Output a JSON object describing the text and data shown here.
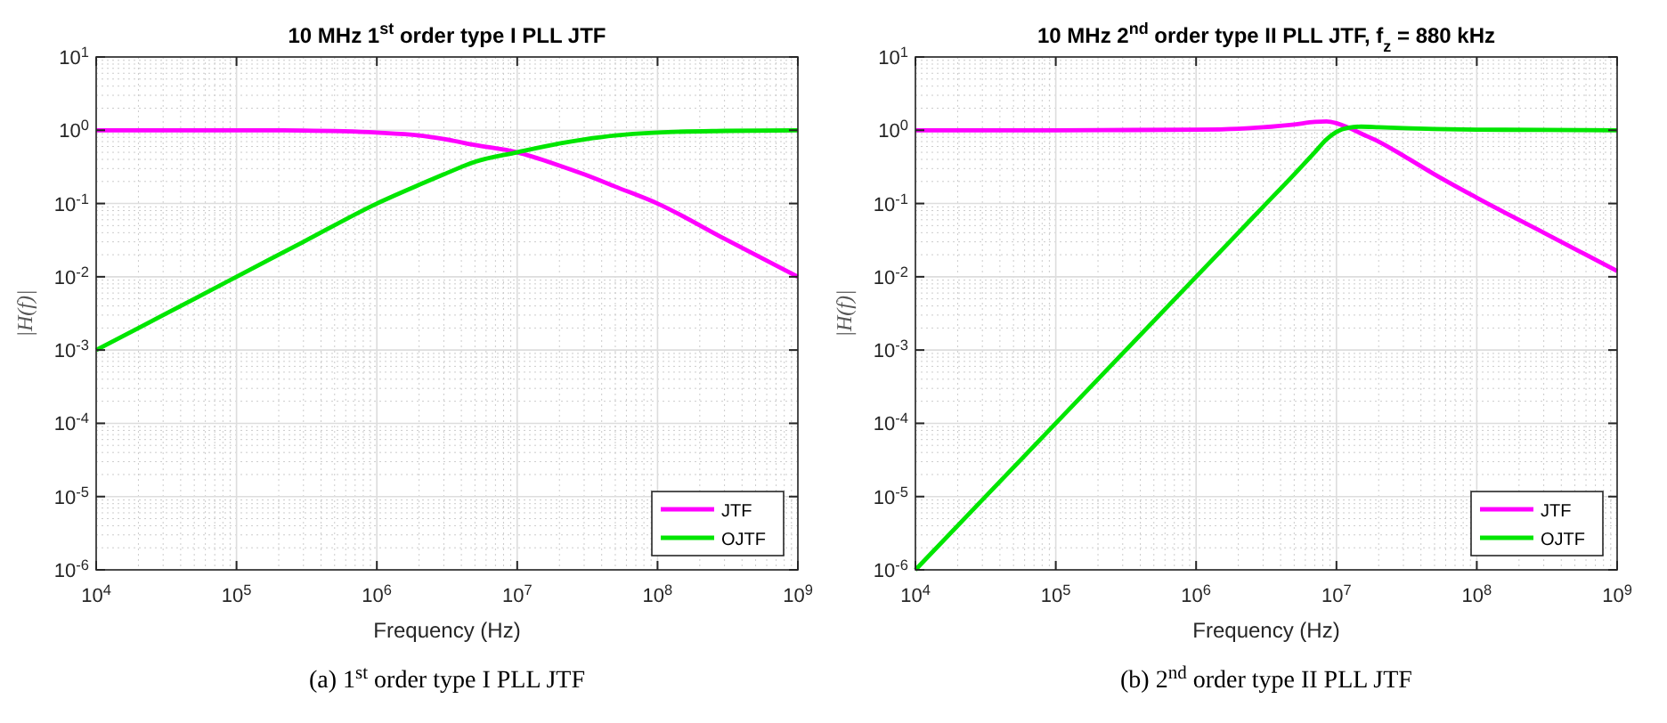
{
  "chart_data": [
    {
      "type": "line",
      "title": "10 MHz 1$^{st}$ order type I PLL JTF",
      "xlabel": "Frequency (Hz)",
      "ylabel": "|H(f)|",
      "log": "xy",
      "grid": true,
      "legend": "bottom right",
      "line_style": "solid",
      "xlim": [
        10000,
        1000000000
      ],
      "xticks": [
        {
          "value": 10000,
          "label": "10$^{4}$"
        },
        {
          "value": 100000,
          "label": "10$^{5}$"
        },
        {
          "value": 1000000,
          "label": "10$^{6}$"
        },
        {
          "value": 10000000,
          "label": "10$^{7}$"
        },
        {
          "value": 100000000,
          "label": "10$^{8}$"
        },
        {
          "value": 1000000000,
          "label": "10$^{9}$"
        }
      ],
      "ylim": [
        1e-06,
        10
      ],
      "yticks": [
        {
          "value": 1e-06,
          "label": "10$^{-6}$"
        },
        {
          "value": 1e-05,
          "label": "10$^{-5}$"
        },
        {
          "value": 0.0001,
          "label": "10$^{-4}$"
        },
        {
          "value": 0.001,
          "label": "10$^{-3}$"
        },
        {
          "value": 0.01,
          "label": "10$^{-2}$"
        },
        {
          "value": 0.1,
          "label": "10$^{-1}$"
        },
        {
          "value": 1,
          "label": "10$^{0}$"
        },
        {
          "value": 10,
          "label": "10$^{1}$"
        }
      ],
      "x": [
        10000,
        30000,
        100000,
        300000,
        1000000,
        2000000,
        3000000,
        5000000,
        10000000,
        20000000,
        30000000,
        50000000,
        100000000,
        300000000,
        1000000000
      ],
      "series": [
        {
          "name": "JTF",
          "color": "#ff00ff",
          "values": [
            1,
            1,
            1,
            0.99,
            0.93,
            0.85,
            0.76,
            0.63,
            0.5,
            0.33,
            0.25,
            0.17,
            0.1,
            0.033,
            0.01
          ]
        },
        {
          "name": "OJTF",
          "color": "#00e600",
          "values": [
            0.001,
            0.003,
            0.01,
            0.03,
            0.1,
            0.18,
            0.25,
            0.37,
            0.5,
            0.66,
            0.75,
            0.85,
            0.93,
            0.98,
            1
          ]
        }
      ],
      "annotations": [
        "(a) 1$^{st}$ order type I PLL JTF"
      ]
    },
    {
      "type": "line",
      "title": "10 MHz 2$^{nd}$ order type II PLL JTF, f$_{z}$ = 880 kHz",
      "xlabel": "Frequency (Hz)",
      "ylabel": "|H(f)|",
      "log": "xy",
      "grid": true,
      "legend": "bottom right",
      "line_style": "solid",
      "xlim": [
        10000,
        1000000000
      ],
      "xticks": [
        {
          "value": 10000,
          "label": "10$^{4}$"
        },
        {
          "value": 100000,
          "label": "10$^{5}$"
        },
        {
          "value": 1000000,
          "label": "10$^{6}$"
        },
        {
          "value": 10000000,
          "label": "10$^{7}$"
        },
        {
          "value": 100000000,
          "label": "10$^{8}$"
        },
        {
          "value": 1000000000,
          "label": "10$^{9}$"
        }
      ],
      "ylim": [
        1e-06,
        10
      ],
      "yticks": [
        {
          "value": 1e-06,
          "label": "10$^{-6}$"
        },
        {
          "value": 1e-05,
          "label": "10$^{-5}$"
        },
        {
          "value": 0.0001,
          "label": "10$^{-4}$"
        },
        {
          "value": 0.001,
          "label": "10$^{-3}$"
        },
        {
          "value": 0.01,
          "label": "10$^{-2}$"
        },
        {
          "value": 0.1,
          "label": "10$^{-1}$"
        },
        {
          "value": 1,
          "label": "10$^{0}$"
        },
        {
          "value": 10,
          "label": "10$^{1}$"
        }
      ],
      "x": [
        10000,
        100000,
        1000000,
        2000000,
        3000000,
        5000000,
        7000000,
        8500000,
        10000000,
        12000000,
        15000000,
        20000000,
        30000000,
        50000000,
        100000000,
        300000000,
        1000000000
      ],
      "series": [
        {
          "name": "JTF",
          "color": "#ff00ff",
          "values": [
            1,
            1,
            1.02,
            1.05,
            1.1,
            1.2,
            1.3,
            1.32,
            1.25,
            1.1,
            0.9,
            0.7,
            0.45,
            0.25,
            0.12,
            0.04,
            0.012
          ]
        },
        {
          "name": "OJTF",
          "color": "#00e600",
          "values": [
            1e-06,
            0.0001,
            0.01,
            0.04,
            0.09,
            0.25,
            0.5,
            0.75,
            0.95,
            1.08,
            1.12,
            1.1,
            1.07,
            1.04,
            1.02,
            1.01,
            1
          ]
        }
      ],
      "annotations": [
        "(b) 2$^{nd}$ order type II PLL JTF"
      ]
    }
  ]
}
